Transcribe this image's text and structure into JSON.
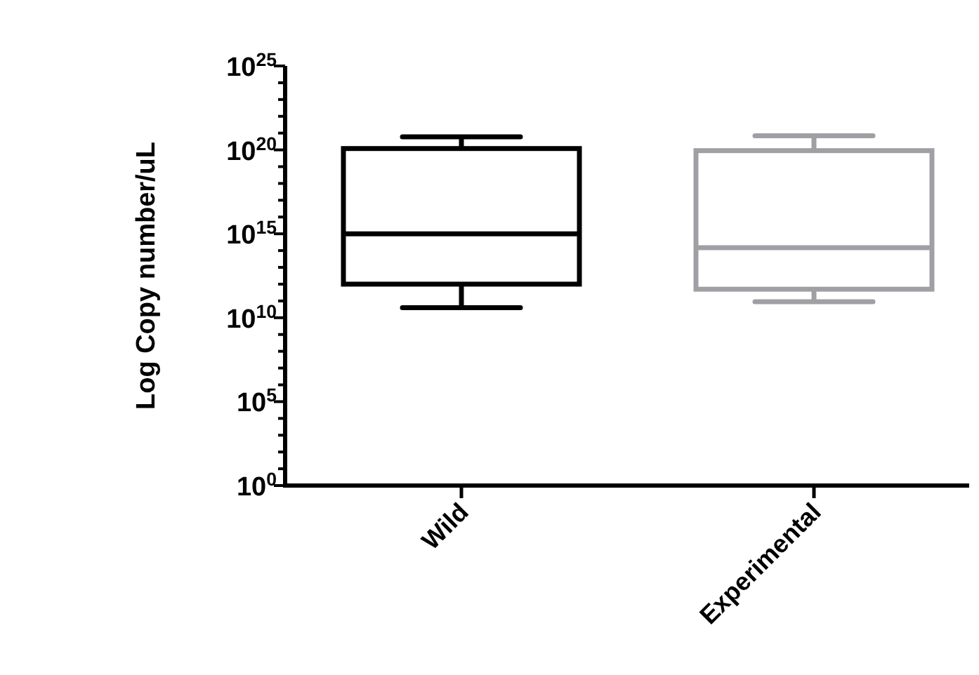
{
  "chart_data": {
    "type": "box",
    "ylabel": "Log Copy number/uL",
    "categories": [
      "Wild",
      "Experimental"
    ],
    "boxes": [
      {
        "low": 40000000000.0,
        "q1": 1000000000000.0,
        "median": 1000000000000000.0,
        "q3": 1.2e+20,
        "high": 6e+20
      },
      {
        "low": 90000000000.0,
        "q1": 500000000000.0,
        "median": 150000000000000.0,
        "q3": 9e+19,
        "high": 7e+20
      }
    ],
    "colors": [
      "#000000",
      "#a0a0a4"
    ],
    "log": true,
    "ylim": [
      1,
      1e+25
    ],
    "yticks": [
      {
        "value": 1,
        "label": "10$^{0}$"
      },
      {
        "value": 10,
        "label": null
      },
      {
        "value": 100,
        "label": null
      },
      {
        "value": 1000.0,
        "label": null
      },
      {
        "value": 10000.0,
        "label": null
      },
      {
        "value": 100000.0,
        "label": "10$^{5}$"
      },
      {
        "value": 1000000.0,
        "label": null
      },
      {
        "value": 10000000.0,
        "label": null
      },
      {
        "value": 100000000.0,
        "label": null
      },
      {
        "value": 1000000000.0,
        "label": null
      },
      {
        "value": 10000000000.0,
        "label": "10$^{10}$"
      },
      {
        "value": 100000000000.0,
        "label": null
      },
      {
        "value": 1000000000000.0,
        "label": null
      },
      {
        "value": 10000000000000.0,
        "label": null
      },
      {
        "value": 100000000000000.0,
        "label": null
      },
      {
        "value": 1000000000000000.0,
        "label": "10$^{15}$"
      },
      {
        "value": 1e+16,
        "label": null
      },
      {
        "value": 1e+17,
        "label": null
      },
      {
        "value": 1e+18,
        "label": null
      },
      {
        "value": 1e+19,
        "label": null
      },
      {
        "value": 1e+20,
        "label": "10$^{20}$"
      },
      {
        "value": 1e+21,
        "label": null
      },
      {
        "value": 1e+22,
        "label": null
      },
      {
        "value": 1e+23,
        "label": null
      },
      {
        "value": 1e+24,
        "label": null
      },
      {
        "value": 1e+25,
        "label": "10$^{25}$"
      }
    ],
    "grid": false
  }
}
